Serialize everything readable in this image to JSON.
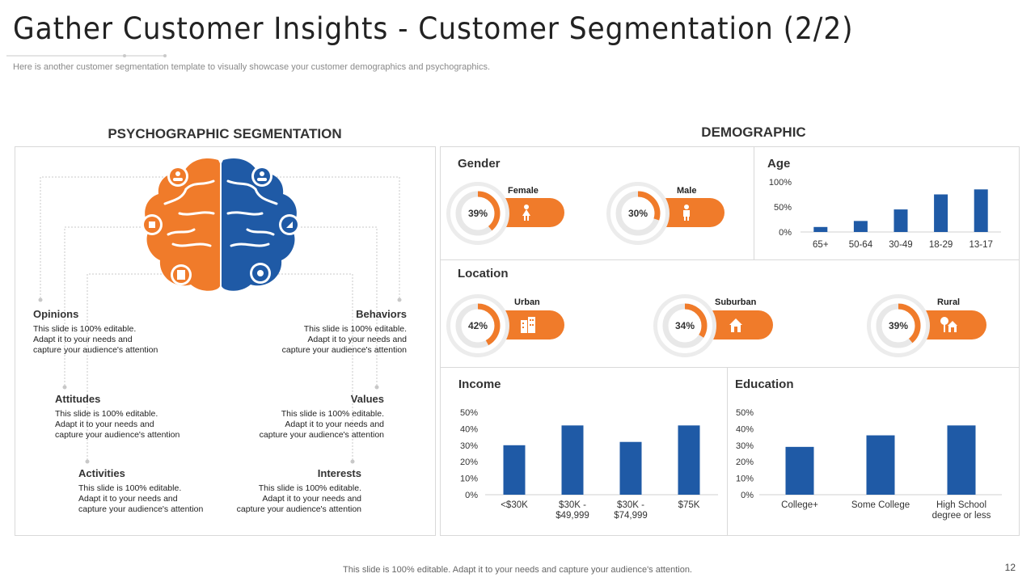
{
  "header": {
    "title": "Gather Customer Insights - Customer Segmentation (2/2)",
    "subtitle": "Here is another customer segmentation template to visually showcase your customer demographics and psychographics."
  },
  "psychographic": {
    "heading": "PSYCHOGRAPHIC SEGMENTATION",
    "items": [
      {
        "title": "Opinions",
        "lines": [
          "This slide is 100% editable.",
          "Adapt it to your needs and",
          "capture your audience's attention"
        ]
      },
      {
        "title": "Behaviors",
        "lines": [
          "This slide is 100% editable.",
          "Adapt it to your needs and",
          "capture your audience's attention"
        ]
      },
      {
        "title": "Attitudes",
        "lines": [
          "This slide is 100% editable.",
          "Adapt it to your needs and",
          "capture your audience's attention"
        ]
      },
      {
        "title": "Values",
        "lines": [
          "This slide is 100% editable.",
          "Adapt it to your needs and",
          "capture your audience's attention"
        ]
      },
      {
        "title": "Activities",
        "lines": [
          "This slide is 100% editable.",
          "Adapt it to your needs and",
          "capture your audience's attention"
        ]
      },
      {
        "title": "Interests",
        "lines": [
          "This slide is 100% editable.",
          "Adapt it to your needs and",
          "capture your audience's attention"
        ]
      }
    ]
  },
  "demographic": {
    "heading": "DEMOGRAPHIC",
    "gender": {
      "title": "Gender",
      "female_label": "Female",
      "female_pct": "39%",
      "female_value": 39,
      "male_label": "Male",
      "male_pct": "30%",
      "male_value": 30
    },
    "location": {
      "title": "Location",
      "urban_label": "Urban",
      "urban_pct": "42%",
      "urban_value": 42,
      "suburban_label": "Suburban",
      "suburban_pct": "34%",
      "suburban_value": 34,
      "rural_label": "Rural",
      "rural_pct": "39%",
      "rural_value": 39
    },
    "age_title": "Age",
    "income_title": "Income",
    "education_title": "Education"
  },
  "colors": {
    "orange": "#f07b2a",
    "blue": "#1f5aa6"
  },
  "icons": [
    "people-group-icon",
    "network-icon",
    "hands-plant-icon",
    "brain-gear-icon",
    "document-icon",
    "female-icon",
    "male-icon",
    "buildings-icon",
    "house-icon",
    "tree-house-icon"
  ],
  "chart_data": [
    {
      "type": "bar",
      "id": "age",
      "categories": [
        "65+",
        "50-64",
        "30-49",
        "18-29",
        "13-17"
      ],
      "values": [
        10,
        22,
        45,
        75,
        85
      ],
      "yticks": [
        "0%",
        "50%",
        "100%"
      ],
      "ylim": [
        0,
        100
      ]
    },
    {
      "type": "bar",
      "id": "income",
      "categories": [
        "<$30K",
        "$30K - $49,999",
        "$30K - $74,999",
        "$75K"
      ],
      "category_lines": [
        [
          "<$30K"
        ],
        [
          "$30K -",
          "$49,999"
        ],
        [
          "$30K -",
          "$74,999"
        ],
        [
          "$75K"
        ]
      ],
      "values": [
        30,
        42,
        32,
        42
      ],
      "yticks": [
        "0%",
        "10%",
        "20%",
        "30%",
        "40%",
        "50%"
      ],
      "ylim": [
        0,
        50
      ]
    },
    {
      "type": "bar",
      "id": "education",
      "categories": [
        "College+",
        "Some College",
        "High School degree or less"
      ],
      "category_lines": [
        [
          "College+"
        ],
        [
          "Some College"
        ],
        [
          "High School",
          "degree or less"
        ]
      ],
      "values": [
        29,
        36,
        42
      ],
      "yticks": [
        "0%",
        "10%",
        "20%",
        "30%",
        "40%",
        "50%"
      ],
      "ylim": [
        0,
        50
      ]
    }
  ],
  "footer": {
    "text": "This slide is 100% editable. Adapt it to your needs and capture your audience's attention.",
    "page_number": "12"
  }
}
